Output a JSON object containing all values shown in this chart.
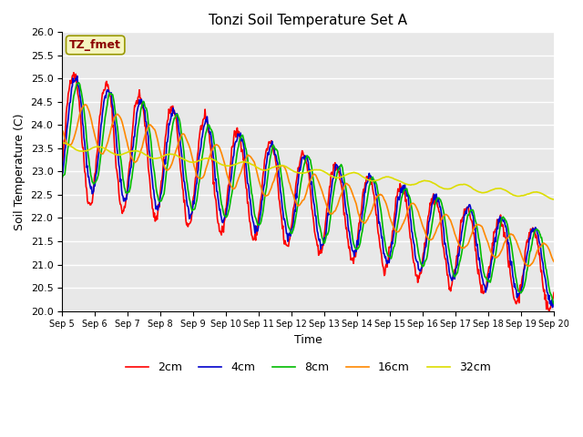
{
  "title": "Tonzi Soil Temperature Set A",
  "xlabel": "Time",
  "ylabel": "Soil Temperature (C)",
  "ylim": [
    20.0,
    26.0
  ],
  "yticks": [
    20.0,
    20.5,
    21.0,
    21.5,
    22.0,
    22.5,
    23.0,
    23.5,
    24.0,
    24.5,
    25.0,
    25.5,
    26.0
  ],
  "xtick_labels": [
    "Sep 5",
    "Sep 6",
    "Sep 7",
    "Sep 8",
    "Sep 9",
    "Sep 10",
    "Sep 11",
    "Sep 12",
    "Sep 13",
    "Sep 14",
    "Sep 15",
    "Sep 16",
    "Sep 17",
    "Sep 18",
    "Sep 19",
    "Sep 20"
  ],
  "legend_label": "TZ_fmet",
  "legend_box_color": "#f5f5c0",
  "legend_box_edge": "#999900",
  "colors": {
    "2cm": "#ff0000",
    "4cm": "#0000cc",
    "8cm": "#00bb00",
    "16cm": "#ff8800",
    "32cm": "#dddd00"
  },
  "line_width": 1.2,
  "plot_bg_color": "#e8e8e8"
}
